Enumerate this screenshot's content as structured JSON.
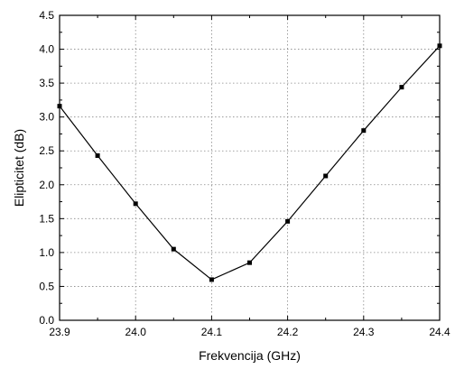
{
  "chart_data": {
    "type": "line",
    "xlabel": "Frekvencija (GHz)",
    "ylabel": "Elipticitet (dB)",
    "xlim": [
      23.9,
      24.4
    ],
    "ylim": [
      0.0,
      4.5
    ],
    "x_ticks": [
      "23.9",
      "24.0",
      "24.1",
      "24.2",
      "24.3",
      "24.4"
    ],
    "y_ticks": [
      "0.0",
      "0.5",
      "1.0",
      "1.5",
      "2.0",
      "2.5",
      "3.0",
      "3.5",
      "4.0",
      "4.5"
    ],
    "grid": true,
    "series": [
      {
        "x": [
          23.9,
          23.95,
          24.0,
          24.05,
          24.1,
          24.15,
          24.2,
          24.25,
          24.3,
          24.35,
          24.4
        ],
        "y": [
          3.16,
          2.43,
          1.72,
          1.05,
          0.6,
          0.85,
          1.46,
          2.13,
          2.8,
          3.44,
          4.05
        ],
        "color": "#000000",
        "marker": "square"
      }
    ]
  }
}
